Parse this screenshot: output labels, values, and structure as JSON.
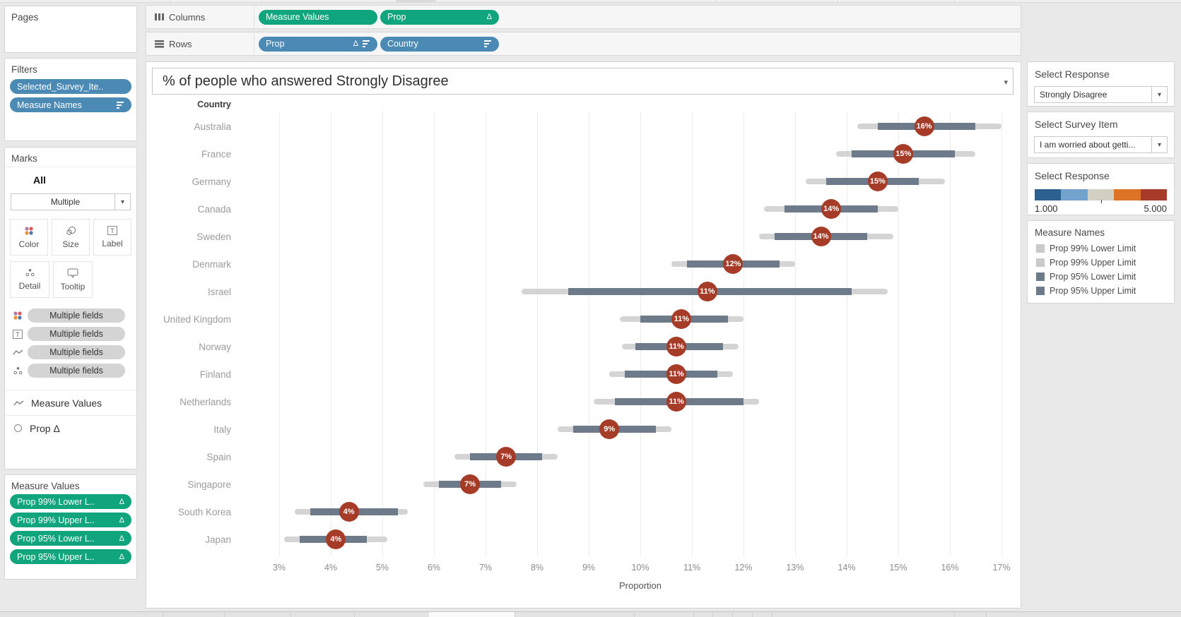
{
  "colors": {
    "pill_green": "#11a57e",
    "pill_blue": "#4a8ab4",
    "dot_red": "#a63b27",
    "bar_dark": "#6c7a89",
    "bar_light": "#d4d4d4",
    "legend_light": "#c9c9c9",
    "legend_dark": "#6c7a89",
    "ramp": [
      "#2c608e",
      "#71a3cd",
      "#d3cfc3",
      "#dd7327",
      "#a63b27"
    ],
    "mark_dots": [
      "#b07aa1",
      "#e15759",
      "#f28e2b",
      "#4e79a7"
    ]
  },
  "shelves": {
    "columns_label": "Columns",
    "rows_label": "Rows",
    "columns_pills": [
      {
        "label": "Measure Values",
        "suffix": "",
        "sort": false
      },
      {
        "label": "Prop",
        "suffix": "Δ",
        "sort": false
      }
    ],
    "rows_pills": [
      {
        "label": "Prop",
        "suffix": "Δ",
        "sort": true
      },
      {
        "label": "Country",
        "suffix": "",
        "sort": true
      }
    ]
  },
  "pages_card": {
    "title": "Pages"
  },
  "filters_card": {
    "title": "Filters",
    "pills": [
      {
        "label": "Selected_Survey_Ite..",
        "icon": ""
      },
      {
        "label": "Measure Names",
        "icon": "sort"
      }
    ]
  },
  "marks_card": {
    "title": "Marks",
    "scope": "All",
    "mark_type": "Multiple",
    "buttons": [
      {
        "label": "Color",
        "icon": "color"
      },
      {
        "label": "Size",
        "icon": "size"
      },
      {
        "label": "Label",
        "icon": "label"
      },
      {
        "label": "Detail",
        "icon": "detail"
      },
      {
        "label": "Tooltip",
        "icon": "tooltip"
      }
    ],
    "field_pills": [
      {
        "icon": "color",
        "label": "Multiple fields"
      },
      {
        "icon": "label",
        "label": "Multiple fields"
      },
      {
        "icon": "line",
        "label": "Multiple fields"
      },
      {
        "icon": "detail",
        "label": "Multiple fields"
      }
    ],
    "layer_rows": [
      {
        "icon": "line",
        "label": "Measure Values",
        "suffix": ""
      },
      {
        "icon": "circle",
        "label": "Prop",
        "suffix": "Δ"
      }
    ]
  },
  "measure_values_card": {
    "title": "Measure Values",
    "pills": [
      {
        "label": "Prop 99% Lower L..",
        "suffix": "Δ"
      },
      {
        "label": "Prop 99% Upper L..",
        "suffix": "Δ"
      },
      {
        "label": "Prop 95% Lower L..",
        "suffix": "Δ"
      },
      {
        "label": "Prop 95% Upper L..",
        "suffix": "Δ"
      }
    ]
  },
  "chart": {
    "title": "% of people who answered Strongly Disagree",
    "row_header": "Country",
    "xlabel": "Proportion"
  },
  "chart_data": {
    "type": "scatter",
    "title": "% of people who answered Strongly Disagree",
    "xlabel": "Proportion",
    "x_ticks": [
      "3%",
      "4%",
      "5%",
      "6%",
      "7%",
      "8%",
      "9%",
      "10%",
      "11%",
      "12%",
      "13%",
      "14%",
      "15%",
      "16%",
      "17%"
    ],
    "x_range_pct": [
      3,
      17
    ],
    "grid": true,
    "categories": [
      "Australia",
      "France",
      "Germany",
      "Canada",
      "Sweden",
      "Denmark",
      "Israel",
      "United Kingdom",
      "Norway",
      "Finland",
      "Netherlands",
      "Italy",
      "Spain",
      "Singapore",
      "South Korea",
      "Japan"
    ],
    "series": [
      {
        "name": "Prop",
        "values": [
          15.5,
          15.1,
          14.6,
          13.7,
          13.5,
          11.8,
          11.3,
          10.8,
          10.7,
          10.7,
          10.7,
          9.4,
          7.4,
          6.7,
          4.35,
          4.1
        ],
        "point_labels": [
          "16%",
          "15%",
          "15%",
          "14%",
          "14%",
          "12%",
          "11%",
          "11%",
          "11%",
          "11%",
          "11%",
          "9%",
          "7%",
          "7%",
          "4%",
          "4%"
        ]
      },
      {
        "name": "Prop 95% CI",
        "ranges": [
          [
            14.6,
            16.5
          ],
          [
            14.1,
            16.1
          ],
          [
            13.6,
            15.4
          ],
          [
            12.8,
            14.6
          ],
          [
            12.6,
            14.4
          ],
          [
            10.9,
            12.7
          ],
          [
            8.6,
            14.1
          ],
          [
            10.0,
            11.7
          ],
          [
            9.9,
            11.6
          ],
          [
            9.7,
            11.5
          ],
          [
            9.5,
            12.0
          ],
          [
            8.7,
            10.3
          ],
          [
            6.7,
            8.1
          ],
          [
            6.1,
            7.3
          ],
          [
            3.6,
            5.3
          ],
          [
            3.4,
            4.7
          ]
        ]
      },
      {
        "name": "Prop 99% CI",
        "ranges": [
          [
            14.2,
            17.0
          ],
          [
            13.8,
            16.5
          ],
          [
            13.2,
            15.9
          ],
          [
            12.4,
            15.0
          ],
          [
            12.3,
            14.9
          ],
          [
            10.6,
            13.0
          ],
          [
            7.7,
            14.8
          ],
          [
            9.6,
            12.0
          ],
          [
            9.65,
            11.9
          ],
          [
            9.4,
            11.8
          ],
          [
            9.1,
            12.3
          ],
          [
            8.4,
            10.6
          ],
          [
            6.4,
            8.4
          ],
          [
            5.8,
            7.6
          ],
          [
            3.3,
            5.5
          ],
          [
            3.1,
            5.1
          ]
        ]
      }
    ]
  },
  "right_panel": {
    "response_param": {
      "title": "Select Response",
      "value": "Strongly Disagree"
    },
    "survey_item_param": {
      "title": "Select Survey Item",
      "value": "I am worried about getti..."
    },
    "response_legend": {
      "title": "Select Response",
      "min_label": "1.000",
      "max_label": "5.000"
    },
    "measure_names_legend": {
      "title": "Measure Names",
      "items": [
        {
          "label": "Prop 99% Lower Limit",
          "swatch": "light"
        },
        {
          "label": "Prop 99% Upper Limit",
          "swatch": "light"
        },
        {
          "label": "Prop 95% Lower Limit",
          "swatch": "dark"
        },
        {
          "label": "Prop 95% Upper Limit",
          "swatch": "dark"
        }
      ]
    }
  }
}
